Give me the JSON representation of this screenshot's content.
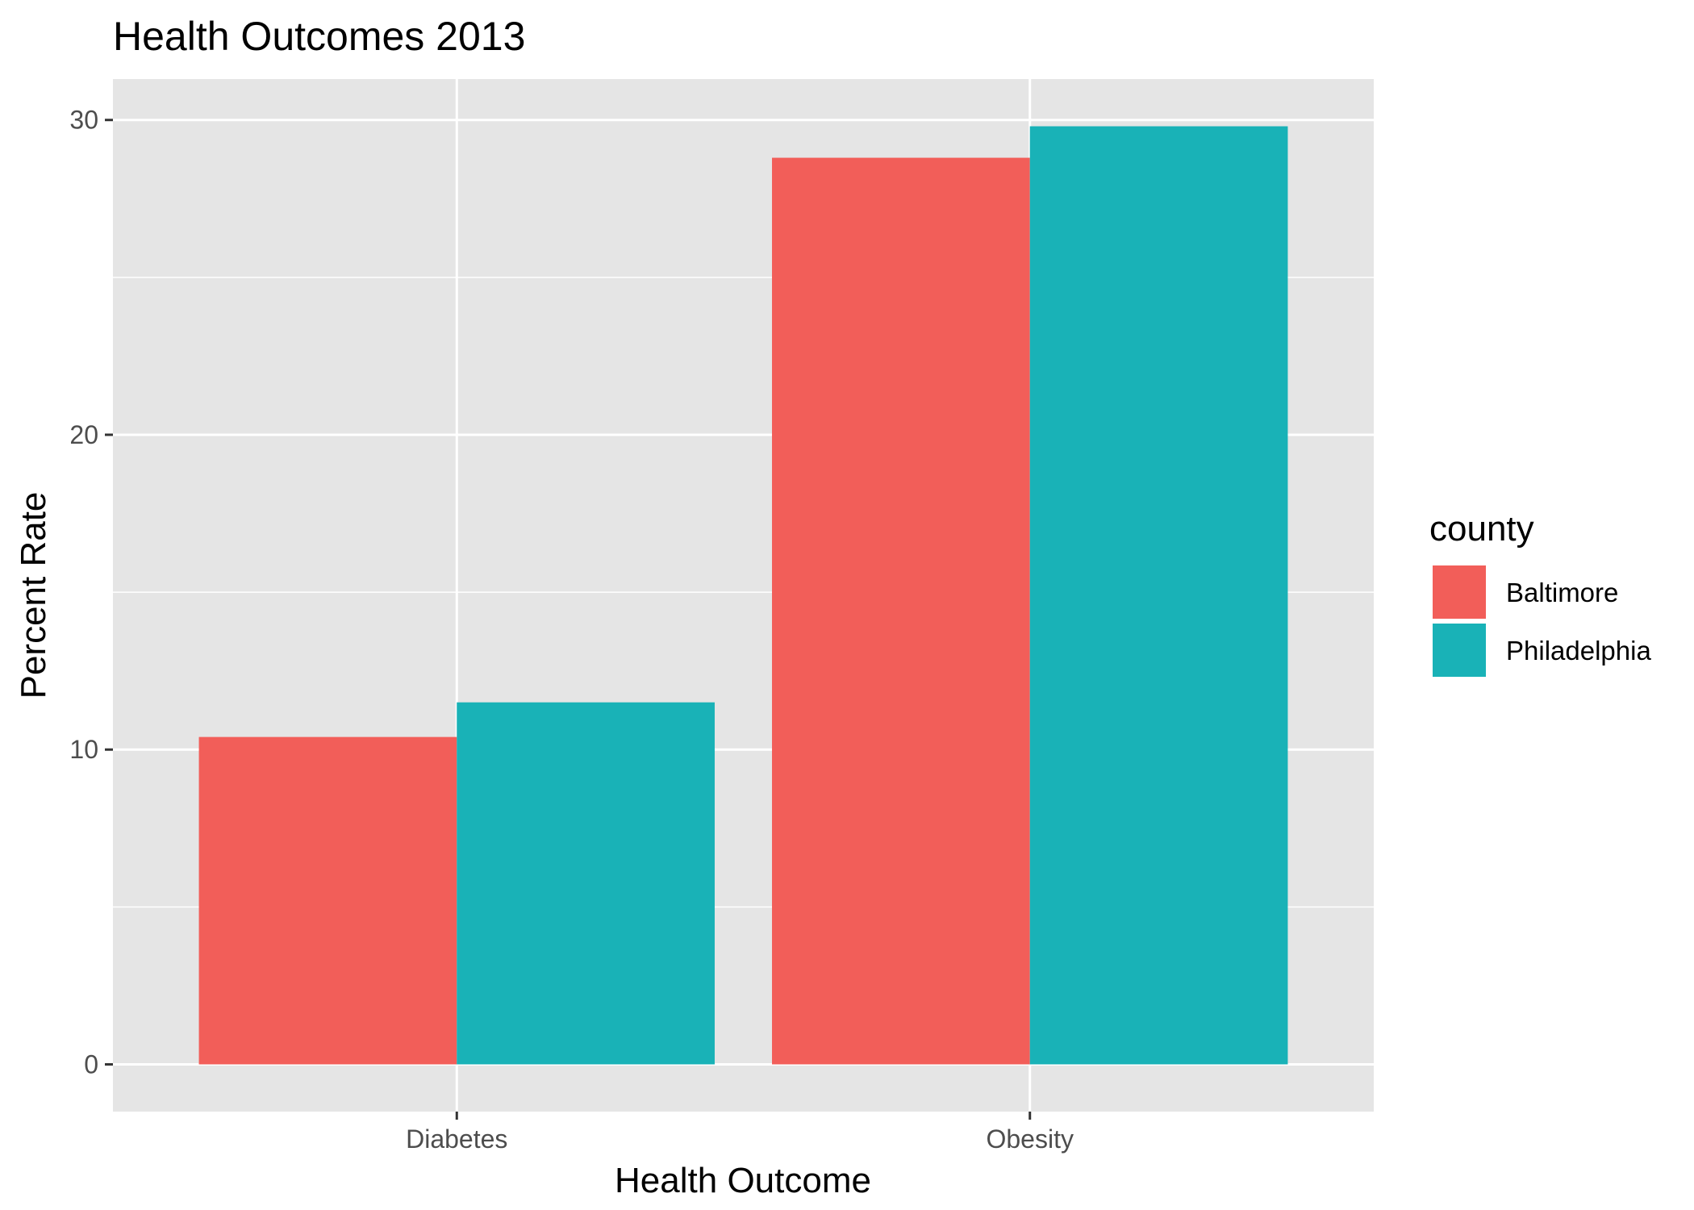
{
  "chart_data": {
    "type": "bar",
    "title": "Health Outcomes 2013",
    "xlabel": "Health Outcome",
    "ylabel": "Percent Rate",
    "categories": [
      "Diabetes",
      "Obesity"
    ],
    "series": [
      {
        "name": "Baltimore",
        "color": "#F25E59",
        "values": [
          10.4,
          28.8
        ]
      },
      {
        "name": "Philadelphia",
        "color": "#19B2B7",
        "values": [
          11.5,
          29.8
        ]
      }
    ],
    "ylim": [
      -1.5,
      31.3
    ],
    "yticks": [
      0,
      10,
      20,
      30
    ],
    "ytick_labels": [
      "0",
      "10",
      "20",
      "30"
    ],
    "grid": true,
    "panel_background": "#E5E5E5",
    "legend": {
      "title": "county",
      "position": "right"
    }
  }
}
